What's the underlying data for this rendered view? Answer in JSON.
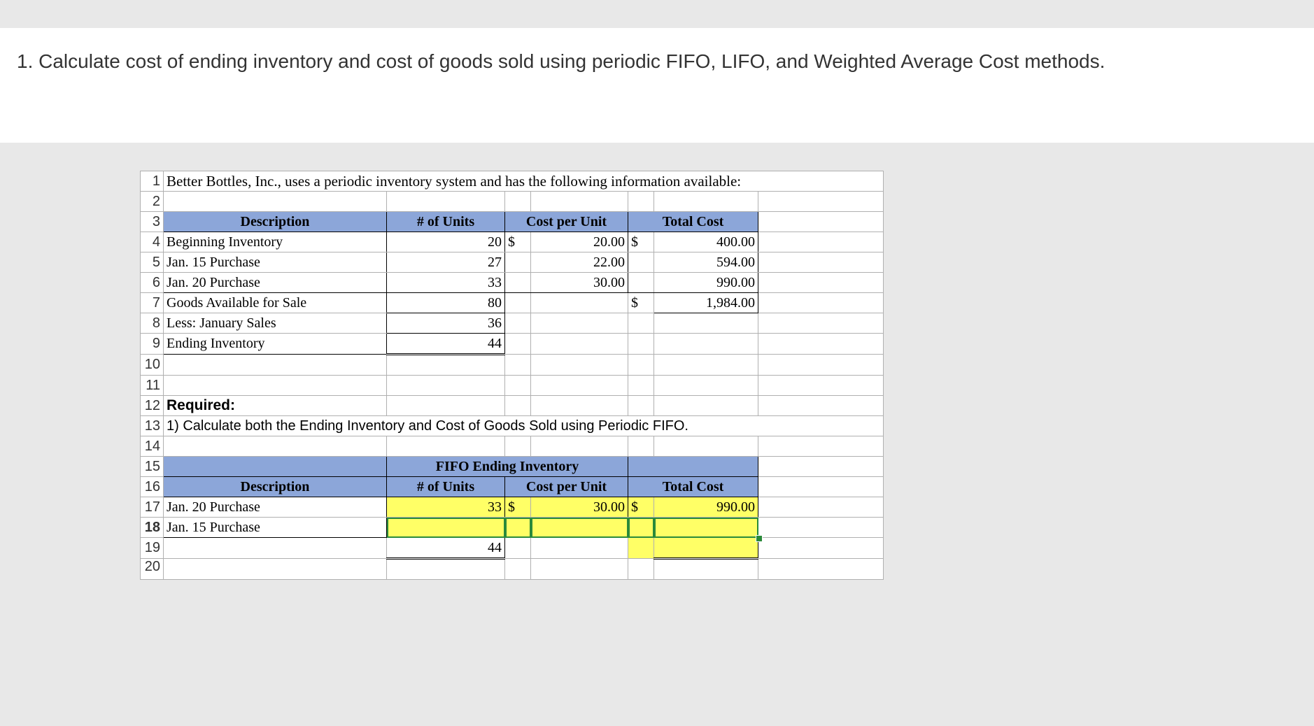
{
  "question": "1. Calculate cost of ending inventory and cost of goods sold using periodic FIFO, LIFO, and Weighted Average Cost methods.",
  "colors": {
    "page_bg": "#e8e8e8",
    "band_bg": "#ffffff",
    "header_fill": "#8ca6d9",
    "highlight_fill": "#ffff66",
    "selection_border": "#2a8a3a",
    "grid_line": "#b0b0b0",
    "box_line": "#000000"
  },
  "row_labels": [
    "1",
    "2",
    "3",
    "4",
    "5",
    "6",
    "7",
    "8",
    "9",
    "10",
    "11",
    "12",
    "13",
    "14",
    "15",
    "16",
    "17",
    "18",
    "19",
    "20"
  ],
  "r1_text": "Better Bottles, Inc., uses a periodic inventory system and has the following information available:",
  "t1": {
    "h_desc": "Description",
    "h_units": "# of Units",
    "h_cpu": "Cost per Unit",
    "h_total": "Total Cost",
    "rows": [
      {
        "desc": "Beginning Inventory",
        "units": "20",
        "sym1": "$",
        "cpu": "20.00",
        "sym2": "$",
        "total": "400.00"
      },
      {
        "desc": "Jan. 15 Purchase",
        "units": "27",
        "sym1": "",
        "cpu": "22.00",
        "sym2": "",
        "total": "594.00"
      },
      {
        "desc": "Jan. 20 Purchase",
        "units": "33",
        "sym1": "",
        "cpu": "30.00",
        "sym2": "",
        "total": "990.00"
      },
      {
        "desc": "Goods Available for Sale",
        "units": "80",
        "sym1": "",
        "cpu": "",
        "sym2": "$",
        "total": "1,984.00"
      },
      {
        "desc": "Less: January Sales",
        "units": "36",
        "sym1": "",
        "cpu": "",
        "sym2": "",
        "total": ""
      },
      {
        "desc": "Ending Inventory",
        "units": "44",
        "sym1": "",
        "cpu": "",
        "sym2": "",
        "total": ""
      }
    ]
  },
  "r12_label": "Required:",
  "r13_text": "1) Calculate both the Ending Inventory and Cost of Goods Sold using Periodic FIFO.",
  "t2": {
    "title": "FIFO Ending Inventory",
    "h_desc": "Description",
    "h_units": "# of Units",
    "h_cpu": "Cost per Unit",
    "h_total": "Total Cost",
    "rows": [
      {
        "desc": "Jan. 20 Purchase",
        "units": "33",
        "sym1": "$",
        "cpu": "30.00",
        "sym2": "$",
        "total": "990.00"
      },
      {
        "desc": "Jan. 15 Purchase",
        "units": "",
        "sym1": "",
        "cpu": "",
        "sym2": "",
        "total": ""
      }
    ],
    "sum_units": "44"
  }
}
